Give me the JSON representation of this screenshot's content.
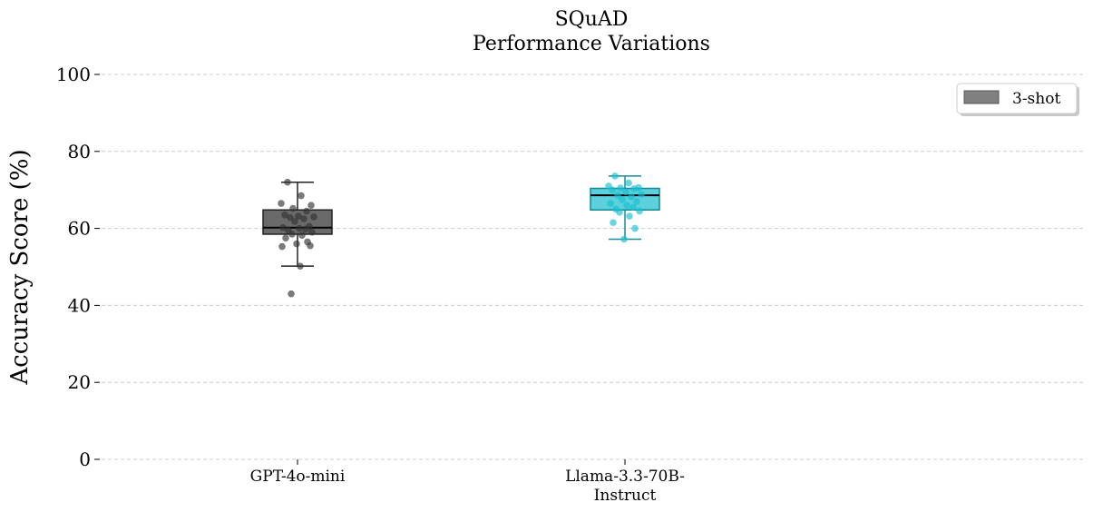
{
  "chart_data": {
    "type": "box",
    "title": "SQuAD",
    "subtitle": "Performance Variations",
    "xlabel": "",
    "ylabel": "Accuracy Score (%)",
    "ylim": [
      0,
      100
    ],
    "yticks": [
      0,
      20,
      40,
      60,
      80,
      100
    ],
    "grid": "y-dashed",
    "legend": {
      "placement": "top-right",
      "entries": [
        {
          "label": "3-shot",
          "color": "#808080"
        }
      ]
    },
    "categories": [
      "GPT-4o-mini",
      "Llama-3.3-70B-\nInstruct"
    ],
    "category_label_lines": [
      [
        "GPT-4o-mini"
      ],
      [
        "Llama-3.3-70B-",
        "Instruct"
      ]
    ],
    "series": [
      {
        "name": "GPT-4o-mini",
        "color": "#555555",
        "box": {
          "whisker_low": 50.2,
          "q1": 58.5,
          "median": 60.2,
          "q3": 64.8,
          "whisker_high": 72.0
        },
        "points": [
          72.0,
          68.5,
          66.5,
          66.0,
          65.2,
          64.5,
          63.5,
          63.2,
          63.0,
          62.8,
          62.5,
          61.8,
          60.5,
          60.2,
          60.0,
          59.8,
          59.5,
          59.0,
          58.5,
          58.2,
          57.5,
          56.5,
          56.0,
          55.5,
          55.3,
          50.2,
          43.0
        ],
        "outliers": [
          43.0
        ]
      },
      {
        "name": "Llama-3.3-70B-Instruct",
        "color": "#17becf",
        "box": {
          "whisker_low": 57.2,
          "q1": 64.8,
          "median": 68.6,
          "q3": 70.4,
          "whisker_high": 73.6
        },
        "points": [
          73.6,
          71.8,
          71.0,
          70.6,
          70.5,
          70.3,
          70.0,
          69.5,
          68.8,
          68.6,
          68.2,
          67.5,
          67.0,
          66.5,
          66.0,
          65.5,
          65.0,
          64.5,
          64.2,
          63.2,
          61.5,
          60.0,
          57.2
        ],
        "outliers": []
      }
    ]
  }
}
